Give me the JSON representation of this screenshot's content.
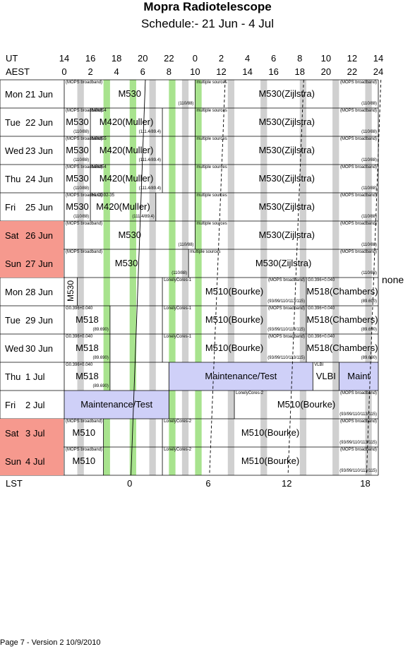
{
  "title": "Mopra Radiotelescope",
  "subtitle": "Schedule:- 21 Jun - 4  Jul",
  "ut_label": "UT",
  "aest_label": "AEST",
  "lst_label": "LST",
  "ut_ticks": [
    "14",
    "16",
    "18",
    "20",
    "22",
    "0",
    "2",
    "4",
    "6",
    "8",
    "10",
    "12",
    "14"
  ],
  "aest_ticks": [
    "0",
    "2",
    "4",
    "6",
    "8",
    "10",
    "12",
    "14",
    "16",
    "18",
    "20",
    "22",
    "24"
  ],
  "lst_ticks": [
    {
      "label": "0",
      "aest": 5
    },
    {
      "label": "6",
      "aest": 11
    },
    {
      "label": "12",
      "aest": 17
    },
    {
      "label": "18",
      "aest": 23
    }
  ],
  "none_label": "none",
  "footer": "Page 7 - Version 2  10/9/2010",
  "colors": {
    "weekend": "#f6998e",
    "green": "#a8e38e",
    "gray": "#d0d0d0",
    "maint": "#cfd0f8"
  },
  "days": [
    {
      "name": "Mon",
      "date": "21 Jun",
      "weekend": false,
      "blocks": [
        {
          "start": 0,
          "end": 10,
          "label": "M530",
          "top": "(MOPS broadband)",
          "bottom": "(110/88)"
        },
        {
          "start": 10,
          "end": 24,
          "label": "M530(Zijlstra)",
          "top": "multiple sources",
          "topRight": "(MOPS broadband)",
          "bottom": "(110/88)"
        }
      ]
    },
    {
      "name": "Tue",
      "date": "22 Jun",
      "weekend": false,
      "blocks": [
        {
          "start": 0,
          "end": 2,
          "label": "M530",
          "top": "(MOPS broadband)",
          "bottom": "(110/88)"
        },
        {
          "start": 2,
          "end": 7.5,
          "label": "M420(Muller)",
          "top": "MBM54",
          "bottom": "(111.4/89.4)"
        },
        {
          "start": 7.5,
          "end": 10,
          "label": "",
          "top": "",
          "bottom": ""
        },
        {
          "start": 10,
          "end": 24,
          "label": "M530(Zijlstra)",
          "top": "multiple sources",
          "topRight": "(MOPS broadband)",
          "bottom": "(110/88)"
        }
      ]
    },
    {
      "name": "Wed",
      "date": "23 Jun",
      "weekend": false,
      "blocks": [
        {
          "start": 0,
          "end": 2,
          "label": "M530",
          "top": "(MOPS broadband)",
          "bottom": "(110/88)"
        },
        {
          "start": 2,
          "end": 7.5,
          "label": "M420(Muller)",
          "top": "MBM55",
          "bottom": "(111.4/89.4)"
        },
        {
          "start": 7.5,
          "end": 10,
          "label": "",
          "top": "",
          "bottom": ""
        },
        {
          "start": 10,
          "end": 24,
          "label": "M530(Zijlstra)",
          "top": "multiple sources",
          "topRight": "(MOPS broadband)",
          "bottom": "(110/88)"
        }
      ]
    },
    {
      "name": "Thu",
      "date": "24 Jun",
      "weekend": false,
      "blocks": [
        {
          "start": 0,
          "end": 2,
          "label": "M530",
          "top": "(MOPS broadband)",
          "bottom": "(110/88)"
        },
        {
          "start": 2,
          "end": 7.5,
          "label": "M420(Muller)",
          "top": "MBM54",
          "bottom": "(111.4/89.4)"
        },
        {
          "start": 7.5,
          "end": 10,
          "label": "",
          "top": "",
          "bottom": ""
        },
        {
          "start": 10,
          "end": 24,
          "label": "M530(Zijlstra)",
          "top": "multiple sources",
          "topRight": "(MOPS broadband)",
          "bottom": "(110/88)"
        }
      ]
    },
    {
      "name": "Fri",
      "date": "25 Jun",
      "weekend": false,
      "blocks": [
        {
          "start": 0,
          "end": 2,
          "label": "M530",
          "top": "(MOPS broadband)",
          "bottom": "(110/88)"
        },
        {
          "start": 2,
          "end": 7,
          "label": "M420(Muller)",
          "top": "HLCG92-35",
          "bottom": "(111.4/89.4)"
        },
        {
          "start": 7,
          "end": 10,
          "label": "",
          "top": "",
          "bottom": ""
        },
        {
          "start": 10,
          "end": 24,
          "label": "M530(Zijlstra)",
          "top": "multiple sources",
          "topRight": "(MOPS broadband)",
          "bottom": "(110/88)"
        }
      ]
    },
    {
      "name": "Sat",
      "date": "26 Jun",
      "weekend": true,
      "blocks": [
        {
          "start": 0,
          "end": 10,
          "label": "M530",
          "top": "(MOPS broadband)",
          "bottom": "(110/88)"
        },
        {
          "start": 10,
          "end": 24,
          "label": "M530(Zijlstra)",
          "top": "multiple sources",
          "topRight": "(MOPS broadband)",
          "bottom": "(110/88)"
        }
      ]
    },
    {
      "name": "Sun",
      "date": "27 Jun",
      "weekend": true,
      "blocks": [
        {
          "start": 0,
          "end": 9.5,
          "label": "M530",
          "top": "(MOPS broadband)",
          "bottom": "(110/88)"
        },
        {
          "start": 9.5,
          "end": 24,
          "label": "M530(Zijlstra)",
          "top": "multiple sources",
          "topRight": "(MOPS broadband)",
          "bottom": "(110/88)"
        }
      ]
    },
    {
      "name": "Mon",
      "date": "28 Jun",
      "weekend": false,
      "blocks": [
        {
          "start": 0,
          "end": 1,
          "label": "M530",
          "vertical": true,
          "top": "",
          "bottom": ""
        },
        {
          "start": 1,
          "end": 7.5,
          "label": "",
          "top": "",
          "bottom": ""
        },
        {
          "start": 7.5,
          "end": 18.5,
          "label": "M510(Bourke)",
          "top": "LonelyCores-1",
          "topRight": "(MOPS broadband)",
          "bottom": "(93/99/110/113/115)"
        },
        {
          "start": 18.5,
          "end": 24,
          "label": "M518(Chambers)",
          "top": "G0.396+0.040",
          "bottom": "(89.690)"
        }
      ]
    },
    {
      "name": "Tue",
      "date": "29 Jun",
      "weekend": false,
      "blocks": [
        {
          "start": 0,
          "end": 3.5,
          "label": "M518",
          "top": "G0.396+0.040",
          "bottom": "(89.690)"
        },
        {
          "start": 3.5,
          "end": 7.5,
          "label": "",
          "top": "",
          "bottom": ""
        },
        {
          "start": 7.5,
          "end": 18.5,
          "label": "M510(Bourke)",
          "top": "LonelyCores-1",
          "topRight": "(MOPS broadband)",
          "bottom": "(93/99/110/113/115)"
        },
        {
          "start": 18.5,
          "end": 24,
          "label": "M518(Chambers)",
          "top": "G0.396+0.040",
          "bottom": "(89.690)"
        }
      ]
    },
    {
      "name": "Wed",
      "date": "30 Jun",
      "weekend": false,
      "blocks": [
        {
          "start": 0,
          "end": 3.5,
          "label": "M518",
          "top": "G0.396+0.040",
          "bottom": "(89.690)"
        },
        {
          "start": 3.5,
          "end": 7.5,
          "label": "",
          "top": "",
          "bottom": ""
        },
        {
          "start": 7.5,
          "end": 18.5,
          "label": "M510(Bourke)",
          "top": "LonelyCores-1",
          "topRight": "(MOPS broadband)",
          "bottom": "(93/99/110/113/115)"
        },
        {
          "start": 18.5,
          "end": 24,
          "label": "M518(Chambers)",
          "top": "G0.396+0.040",
          "bottom": "(89.690)"
        }
      ]
    },
    {
      "name": "Thu",
      "date": "1  Jul",
      "weekend": false,
      "blocks": [
        {
          "start": 0,
          "end": 3.5,
          "label": "M518",
          "top": "G0.396+0.040",
          "bottom": "(89.690)"
        },
        {
          "start": 3.5,
          "end": 8,
          "label": "",
          "top": "",
          "bottom": ""
        },
        {
          "start": 8,
          "end": 19,
          "label": "Maintenance/Test",
          "maint": true,
          "top": "",
          "bottom": ""
        },
        {
          "start": 19,
          "end": 21,
          "label": "VLBI",
          "top": "VLBI",
          "bottom": ""
        },
        {
          "start": 21,
          "end": 24,
          "label": "Maint",
          "maint": true,
          "top": "",
          "bottom": ""
        }
      ]
    },
    {
      "name": "Fri",
      "date": "2  Jul",
      "weekend": false,
      "blocks": [
        {
          "start": 0,
          "end": 8,
          "label": "Maintenance/Test",
          "maint": true,
          "top": "",
          "bottom": ""
        },
        {
          "start": 8,
          "end": 13,
          "label": "",
          "top": "",
          "bottom": ""
        },
        {
          "start": 13,
          "end": 24,
          "label": "M510(Bourke)",
          "top": "LonelyCores-2",
          "topRight": "(MOPS broadband)",
          "bottom": "(93/99/110/113/115)"
        }
      ]
    },
    {
      "name": "Sat",
      "date": "3  Jul",
      "weekend": true,
      "blocks": [
        {
          "start": 0,
          "end": 3,
          "label": "M510",
          "top": "(MOPS broadband)",
          "bottom": ""
        },
        {
          "start": 3,
          "end": 7.5,
          "label": "",
          "top": "",
          "bottom": ""
        },
        {
          "start": 7.5,
          "end": 24,
          "label": "M510(Bourke)",
          "top": "LonelyCores-2",
          "topRight": "(MOPS broadband)",
          "bottom": "(93/99/110/113/115)"
        }
      ]
    },
    {
      "name": "Sun",
      "date": "4  Jul",
      "weekend": true,
      "blocks": [
        {
          "start": 0,
          "end": 3,
          "label": "M510",
          "top": "(MOPS broadband)",
          "bottom": ""
        },
        {
          "start": 3,
          "end": 7.5,
          "label": "",
          "top": "",
          "bottom": ""
        },
        {
          "start": 7.5,
          "end": 24,
          "label": "M510(Bourke)",
          "top": "LonelyCores-2",
          "topRight": "(MOPS broadband)",
          "bottom": "(93/99/110/113/115)"
        }
      ]
    }
  ]
}
